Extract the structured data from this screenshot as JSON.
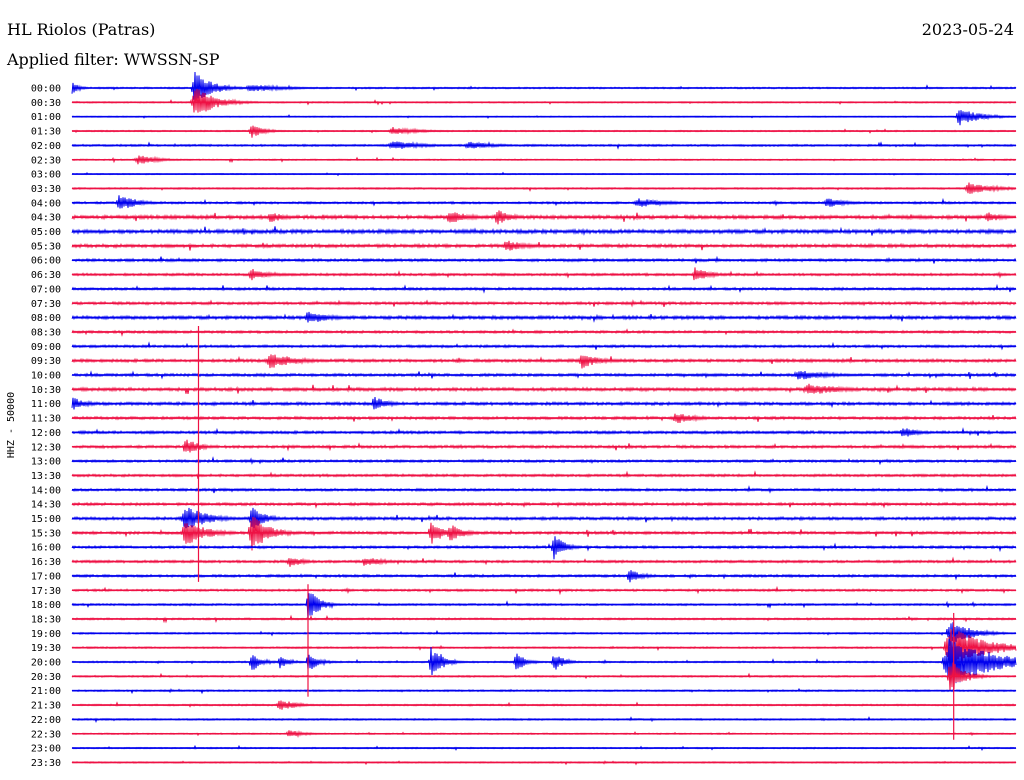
{
  "header": {
    "station": "HL Riolos (Patras)",
    "date": "2023-05-24",
    "filter": "Applied filter: WWSSN-SP"
  },
  "chart_data": {
    "type": "line",
    "title": "HL Riolos (Patras)",
    "subtitle": "Applied filter: WWSSN-SP",
    "ylabel": "HHZ - 50000",
    "xlabel": "",
    "trace_labels": [
      "00:00",
      "00:30",
      "01:00",
      "01:30",
      "02:00",
      "02:30",
      "03:00",
      "03:30",
      "04:00",
      "04:30",
      "05:00",
      "05:30",
      "06:00",
      "06:30",
      "07:00",
      "07:30",
      "08:00",
      "08:30",
      "09:00",
      "09:30",
      "10:00",
      "10:30",
      "11:00",
      "11:30",
      "12:00",
      "12:30",
      "13:00",
      "13:30",
      "14:00",
      "14:30",
      "15:00",
      "15:30",
      "16:00",
      "16:30",
      "17:00",
      "17:30",
      "18:00",
      "18:30",
      "19:00",
      "19:30",
      "20:00",
      "20:30",
      "21:00",
      "21:30",
      "22:00",
      "22:30",
      "23:00",
      "23:30"
    ],
    "colors": {
      "even_trace": "#0000ee",
      "odd_trace": "#ee1144"
    },
    "noise_levels": [
      0.6,
      0.5,
      0.4,
      0.5,
      0.7,
      0.5,
      0.4,
      0.6,
      0.8,
      1.3,
      1.4,
      1.2,
      1.0,
      0.9,
      0.9,
      1.0,
      1.2,
      0.9,
      0.9,
      1.1,
      1.0,
      1.2,
      1.1,
      1.0,
      1.0,
      1.0,
      0.9,
      0.9,
      0.9,
      1.0,
      1.1,
      1.0,
      0.9,
      0.9,
      0.9,
      0.8,
      0.7,
      0.7,
      0.6,
      0.6,
      0.6,
      0.6,
      0.6,
      0.6,
      0.6,
      0.5,
      0.5,
      0.5
    ],
    "events": [
      {
        "trace": 0,
        "x_frac": 0.0,
        "amp": 7,
        "width": 0.01
      },
      {
        "trace": 0,
        "x_frac": 0.13,
        "amp": 18,
        "width": 0.025
      },
      {
        "trace": 0,
        "x_frac": 0.19,
        "amp": 4,
        "width": 0.05
      },
      {
        "trace": 1,
        "x_frac": 0.13,
        "amp": 16,
        "width": 0.03
      },
      {
        "trace": 2,
        "x_frac": 0.94,
        "amp": 9,
        "width": 0.03
      },
      {
        "trace": 3,
        "x_frac": 0.19,
        "amp": 7,
        "width": 0.02
      },
      {
        "trace": 3,
        "x_frac": 0.34,
        "amp": 4,
        "width": 0.04
      },
      {
        "trace": 4,
        "x_frac": 0.34,
        "amp": 5,
        "width": 0.04
      },
      {
        "trace": 4,
        "x_frac": 0.42,
        "amp": 4,
        "width": 0.04
      },
      {
        "trace": 5,
        "x_frac": 0.07,
        "amp": 5,
        "width": 0.03
      },
      {
        "trace": 7,
        "x_frac": 0.95,
        "amp": 6,
        "width": 0.04
      },
      {
        "trace": 8,
        "x_frac": 0.05,
        "amp": 9,
        "width": 0.025
      },
      {
        "trace": 8,
        "x_frac": 0.6,
        "amp": 5,
        "width": 0.04
      },
      {
        "trace": 8,
        "x_frac": 0.8,
        "amp": 5,
        "width": 0.03
      },
      {
        "trace": 9,
        "x_frac": 0.21,
        "amp": 6,
        "width": 0.02
      },
      {
        "trace": 9,
        "x_frac": 0.4,
        "amp": 7,
        "width": 0.03
      },
      {
        "trace": 9,
        "x_frac": 0.45,
        "amp": 8,
        "width": 0.02
      },
      {
        "trace": 9,
        "x_frac": 0.97,
        "amp": 6,
        "width": 0.02
      },
      {
        "trace": 11,
        "x_frac": 0.46,
        "amp": 6,
        "width": 0.03
      },
      {
        "trace": 13,
        "x_frac": 0.19,
        "amp": 6,
        "width": 0.03
      },
      {
        "trace": 13,
        "x_frac": 0.66,
        "amp": 9,
        "width": 0.02
      },
      {
        "trace": 16,
        "x_frac": 0.25,
        "amp": 7,
        "width": 0.03
      },
      {
        "trace": 19,
        "x_frac": 0.21,
        "amp": 8,
        "width": 0.04
      },
      {
        "trace": 19,
        "x_frac": 0.54,
        "amp": 8,
        "width": 0.025
      },
      {
        "trace": 20,
        "x_frac": 0.77,
        "amp": 5,
        "width": 0.05
      },
      {
        "trace": 21,
        "x_frac": 0.78,
        "amp": 6,
        "width": 0.05
      },
      {
        "trace": 22,
        "x_frac": 0.0,
        "amp": 7,
        "width": 0.02
      },
      {
        "trace": 22,
        "x_frac": 0.32,
        "amp": 8,
        "width": 0.02
      },
      {
        "trace": 23,
        "x_frac": 0.64,
        "amp": 6,
        "width": 0.03
      },
      {
        "trace": 24,
        "x_frac": 0.88,
        "amp": 6,
        "width": 0.02
      },
      {
        "trace": 25,
        "x_frac": 0.12,
        "amp": 9,
        "width": 0.02
      },
      {
        "trace": 30,
        "x_frac": 0.12,
        "amp": 14,
        "width": 0.03
      },
      {
        "trace": 30,
        "x_frac": 0.19,
        "amp": 12,
        "width": 0.02
      },
      {
        "trace": 31,
        "x_frac": 0.12,
        "amp": 14,
        "width": 0.03
      },
      {
        "trace": 31,
        "x_frac": 0.19,
        "amp": 20,
        "width": 0.025
      },
      {
        "trace": 31,
        "x_frac": 0.38,
        "amp": 12,
        "width": 0.02
      },
      {
        "trace": 31,
        "x_frac": 0.4,
        "amp": 10,
        "width": 0.02
      },
      {
        "trace": 32,
        "x_frac": 0.51,
        "amp": 14,
        "width": 0.015
      },
      {
        "trace": 33,
        "x_frac": 0.23,
        "amp": 6,
        "width": 0.02
      },
      {
        "trace": 33,
        "x_frac": 0.31,
        "amp": 5,
        "width": 0.03
      },
      {
        "trace": 34,
        "x_frac": 0.59,
        "amp": 7,
        "width": 0.02
      },
      {
        "trace": 36,
        "x_frac": 0.25,
        "amp": 20,
        "width": 0.015
      },
      {
        "trace": 38,
        "x_frac": 0.93,
        "amp": 14,
        "width": 0.03
      },
      {
        "trace": 39,
        "x_frac": 0.93,
        "amp": 22,
        "width": 0.05
      },
      {
        "trace": 40,
        "x_frac": 0.19,
        "amp": 10,
        "width": 0.015
      },
      {
        "trace": 40,
        "x_frac": 0.22,
        "amp": 7,
        "width": 0.015
      },
      {
        "trace": 40,
        "x_frac": 0.25,
        "amp": 11,
        "width": 0.015
      },
      {
        "trace": 40,
        "x_frac": 0.38,
        "amp": 16,
        "width": 0.015
      },
      {
        "trace": 40,
        "x_frac": 0.39,
        "amp": 9,
        "width": 0.015
      },
      {
        "trace": 40,
        "x_frac": 0.47,
        "amp": 10,
        "width": 0.015
      },
      {
        "trace": 40,
        "x_frac": 0.51,
        "amp": 10,
        "width": 0.015
      },
      {
        "trace": 40,
        "x_frac": 0.93,
        "amp": 26,
        "width": 0.06
      },
      {
        "trace": 41,
        "x_frac": 0.93,
        "amp": 18,
        "width": 0.02
      },
      {
        "trace": 43,
        "x_frac": 0.22,
        "amp": 6,
        "width": 0.025
      },
      {
        "trace": 45,
        "x_frac": 0.23,
        "amp": 4,
        "width": 0.025
      }
    ],
    "long_spikes": [
      {
        "trace_from": 17,
        "trace_to": 34,
        "x_frac": 0.134
      },
      {
        "trace_from": 35,
        "trace_to": 42,
        "x_frac": 0.25
      },
      {
        "trace_from": 37,
        "trace_to": 45,
        "x_frac": 0.934
      }
    ],
    "grid": false,
    "legend": "none"
  }
}
